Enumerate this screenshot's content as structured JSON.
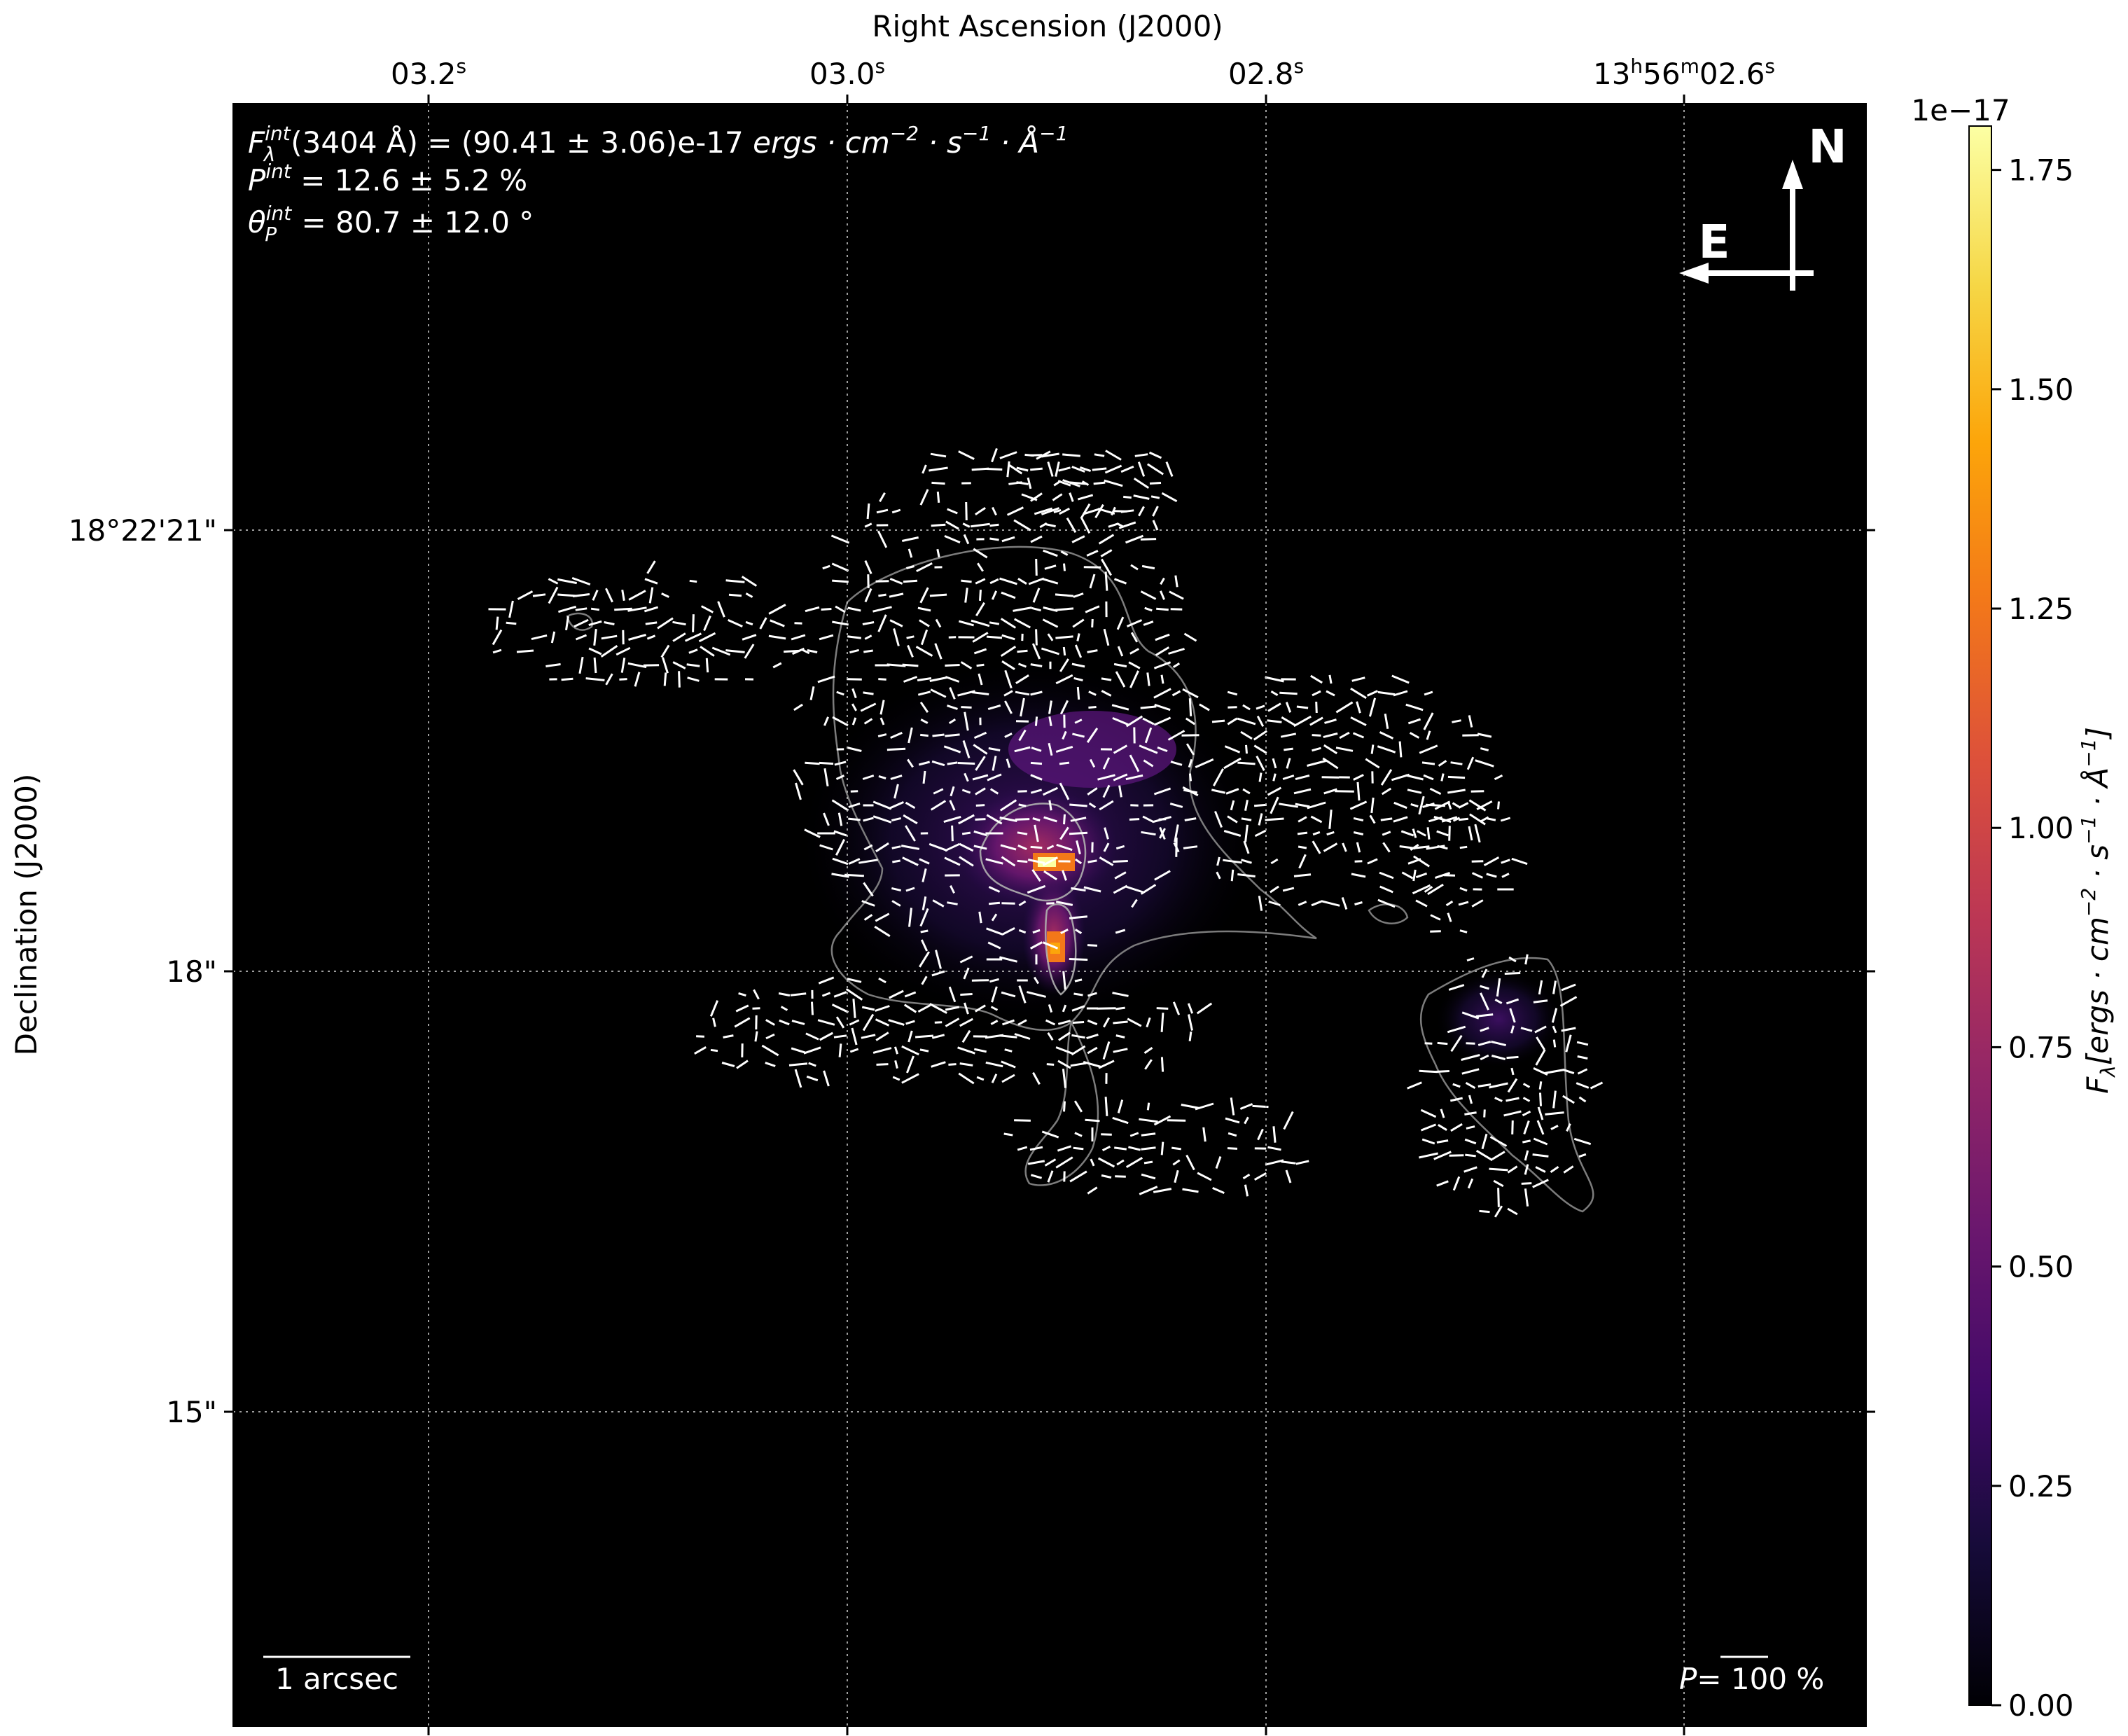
{
  "chart_data": {
    "type": "heatmap",
    "colormap": "inferno",
    "background": "#000000",
    "axes": {
      "x_top_label": "Right Ascension (J2000)",
      "y_left_label": "Declination (J2000)",
      "x_ticks": [
        {
          "main": "03.2",
          "sup": "s"
        },
        {
          "main": "03.0",
          "sup": "s"
        },
        {
          "main": "02.8",
          "sup": "s"
        },
        {
          "main": "13h56m02.6",
          "sup": "s",
          "parts": [
            "13",
            "h",
            "56",
            "m",
            "02.6",
            "s"
          ]
        }
      ],
      "y_ticks": [
        "18°22'21\"",
        "18\"",
        "15\""
      ],
      "grid": true
    },
    "colorbar": {
      "label": "F_λ [ergs · cm^-2 · s^-1 · Å^-1]",
      "label_parts": {
        "base": "F",
        "sub": "λ",
        "units": "[ergs · cm",
        "e1": "−2",
        "mid1": " · s",
        "e2": "−1",
        "mid2": " · Å",
        "e3": "−1",
        "end": "]"
      },
      "multiplier": "1e−17",
      "ticks": [
        "0.00",
        "0.25",
        "0.50",
        "0.75",
        "1.00",
        "1.25",
        "1.50",
        "1.75"
      ],
      "tick_values": [
        0.0,
        0.25,
        0.5,
        0.75,
        1.0,
        1.25,
        1.5,
        1.75
      ],
      "range": [
        0.0,
        1.8
      ]
    },
    "annotations": {
      "flux": {
        "sym": "F",
        "sup": "int",
        "sub": "λ",
        "text": "(3404 Å) = (90.41 ± 3.06)e-17 ",
        "units": "ergs · cm",
        "e1": "−2",
        "mid1": " · s",
        "e2": "−1",
        "mid2": " · Å",
        "e3": "−1"
      },
      "pol": {
        "sym": "P",
        "sup": "int",
        "text": " = 12.6 ± 5.2 %"
      },
      "angle": {
        "sym": "θ",
        "sup": "int",
        "sub": "P",
        "text": " = 80.7 ± 12.0 °"
      },
      "compass_north": "N",
      "compass_east": "E",
      "scale_bar": "1 arcsec",
      "pol_scale": {
        "sym": "P",
        "text": "= 100 %"
      }
    },
    "sources": [
      {
        "id": "main-knot",
        "peak": 1.8
      },
      {
        "id": "southern-knot",
        "peak": 1.6
      },
      {
        "id": "east-blob",
        "peak": 0.3
      }
    ]
  }
}
